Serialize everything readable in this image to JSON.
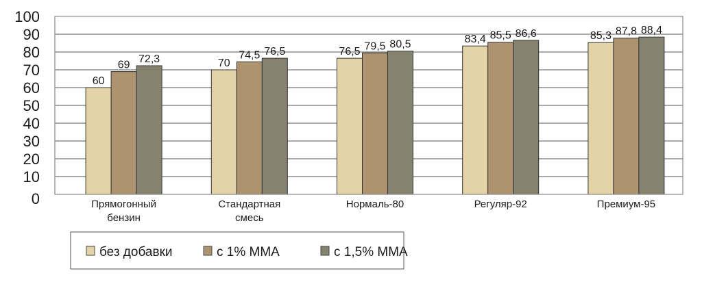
{
  "chart_data": {
    "type": "bar",
    "title": "",
    "xlabel": "",
    "ylabel": "",
    "ylim": [
      0,
      100
    ],
    "yticks": [
      0,
      10,
      20,
      30,
      40,
      50,
      60,
      70,
      80,
      90,
      100
    ],
    "grid": true,
    "legend_position": "bottom-left",
    "categories": [
      [
        "Прямогонный",
        "бензин"
      ],
      [
        "Стандартная",
        "смесь"
      ],
      [
        "Нормаль-80"
      ],
      [
        "Регуляр-92"
      ],
      [
        "Премиум-95"
      ]
    ],
    "series": [
      {
        "name": "без добавки",
        "color": "#e4d3a7",
        "values": [
          60,
          70,
          76.5,
          83.4,
          85.3
        ],
        "labels": [
          "60",
          "70",
          "76,5",
          "83,4",
          "85,3"
        ]
      },
      {
        "name": "с 1% ММА",
        "color": "#ad9370",
        "values": [
          69,
          74.5,
          79.5,
          85.5,
          87.8
        ],
        "labels": [
          "69",
          "74,5",
          "79,5",
          "85,5",
          "87,8"
        ]
      },
      {
        "name": "с 1,5% ММА",
        "color": "#858370",
        "values": [
          72.3,
          76.5,
          80.5,
          86.6,
          88.4
        ],
        "labels": [
          "72,3",
          "76,5",
          "80,5",
          "86,6",
          "88,4"
        ]
      }
    ]
  }
}
